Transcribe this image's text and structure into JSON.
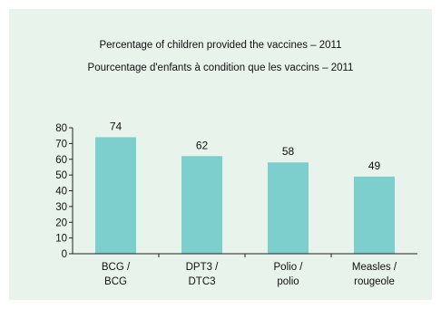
{
  "chart_data": {
    "type": "bar",
    "title": "Percentage of children provided the vaccines – 2011",
    "subtitle": "Pourcentage d'enfants à condition que les vaccins – 2011",
    "categories": [
      [
        "BCG /",
        "BCG"
      ],
      [
        "DPT3 /",
        "DTC3"
      ],
      [
        "Polio /",
        "polio"
      ],
      [
        "Measles /",
        "rougeole"
      ]
    ],
    "values": [
      74,
      62,
      58,
      49
    ],
    "ylim": [
      0,
      80
    ],
    "yticks": [
      0,
      10,
      20,
      30,
      40,
      50,
      60,
      70,
      80
    ],
    "bar_color": "#7ccfcc",
    "background_color": "#e8f3ec",
    "grid": false,
    "data_labels": true
  }
}
